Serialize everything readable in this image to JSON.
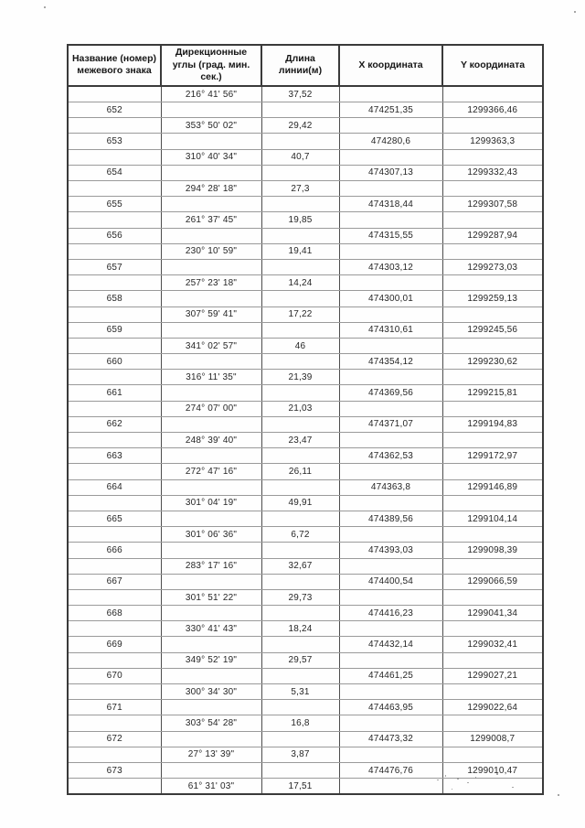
{
  "table": {
    "headers": [
      "Название (номер) межевого знака",
      "Дирекционные углы (град. мин. сек.)",
      "Длина линии(м)",
      "X координата",
      "Y координата"
    ],
    "rows": [
      {
        "point": "",
        "angle": "216° 41' 56\"",
        "length": "37,52",
        "x": "",
        "y": ""
      },
      {
        "point": "652",
        "angle": "",
        "length": "",
        "x": "474251,35",
        "y": "1299366,46"
      },
      {
        "point": "",
        "angle": "353° 50' 02\"",
        "length": "29,42",
        "x": "",
        "y": ""
      },
      {
        "point": "653",
        "angle": "",
        "length": "",
        "x": "474280,6",
        "y": "1299363,3"
      },
      {
        "point": "",
        "angle": "310° 40' 34\"",
        "length": "40,7",
        "x": "",
        "y": ""
      },
      {
        "point": "654",
        "angle": "",
        "length": "",
        "x": "474307,13",
        "y": "1299332,43"
      },
      {
        "point": "",
        "angle": "294° 28' 18\"",
        "length": "27,3",
        "x": "",
        "y": ""
      },
      {
        "point": "655",
        "angle": "",
        "length": "",
        "x": "474318,44",
        "y": "1299307,58"
      },
      {
        "point": "",
        "angle": "261° 37' 45\"",
        "length": "19,85",
        "x": "",
        "y": ""
      },
      {
        "point": "656",
        "angle": "",
        "length": "",
        "x": "474315,55",
        "y": "1299287,94"
      },
      {
        "point": "",
        "angle": "230° 10' 59\"",
        "length": "19,41",
        "x": "",
        "y": ""
      },
      {
        "point": "657",
        "angle": "",
        "length": "",
        "x": "474303,12",
        "y": "1299273,03"
      },
      {
        "point": "",
        "angle": "257° 23' 18\"",
        "length": "14,24",
        "x": "",
        "y": ""
      },
      {
        "point": "658",
        "angle": "",
        "length": "",
        "x": "474300,01",
        "y": "1299259,13"
      },
      {
        "point": "",
        "angle": "307° 59' 41\"",
        "length": "17,22",
        "x": "",
        "y": ""
      },
      {
        "point": "659",
        "angle": "",
        "length": "",
        "x": "474310,61",
        "y": "1299245,56"
      },
      {
        "point": "",
        "angle": "341° 02' 57\"",
        "length": "46",
        "x": "",
        "y": ""
      },
      {
        "point": "660",
        "angle": "",
        "length": "",
        "x": "474354,12",
        "y": "1299230,62"
      },
      {
        "point": "",
        "angle": "316° 11' 35\"",
        "length": "21,39",
        "x": "",
        "y": ""
      },
      {
        "point": "661",
        "angle": "",
        "length": "",
        "x": "474369,56",
        "y": "1299215,81"
      },
      {
        "point": "",
        "angle": "274° 07' 00\"",
        "length": "21,03",
        "x": "",
        "y": ""
      },
      {
        "point": "662",
        "angle": "",
        "length": "",
        "x": "474371,07",
        "y": "1299194,83"
      },
      {
        "point": "",
        "angle": "248° 39' 40\"",
        "length": "23,47",
        "x": "",
        "y": ""
      },
      {
        "point": "663",
        "angle": "",
        "length": "",
        "x": "474362,53",
        "y": "1299172,97"
      },
      {
        "point": "",
        "angle": "272° 47' 16\"",
        "length": "26,11",
        "x": "",
        "y": ""
      },
      {
        "point": "664",
        "angle": "",
        "length": "",
        "x": "474363,8",
        "y": "1299146,89"
      },
      {
        "point": "",
        "angle": "301° 04' 19\"",
        "length": "49,91",
        "x": "",
        "y": ""
      },
      {
        "point": "665",
        "angle": "",
        "length": "",
        "x": "474389,56",
        "y": "1299104,14"
      },
      {
        "point": "",
        "angle": "301° 06' 36\"",
        "length": "6,72",
        "x": "",
        "y": ""
      },
      {
        "point": "666",
        "angle": "",
        "length": "",
        "x": "474393,03",
        "y": "1299098,39"
      },
      {
        "point": "",
        "angle": "283° 17' 16\"",
        "length": "32,67",
        "x": "",
        "y": ""
      },
      {
        "point": "667",
        "angle": "",
        "length": "",
        "x": "474400,54",
        "y": "1299066,59"
      },
      {
        "point": "",
        "angle": "301° 51' 22\"",
        "length": "29,73",
        "x": "",
        "y": ""
      },
      {
        "point": "668",
        "angle": "",
        "length": "",
        "x": "474416,23",
        "y": "1299041,34"
      },
      {
        "point": "",
        "angle": "330° 41' 43\"",
        "length": "18,24",
        "x": "",
        "y": ""
      },
      {
        "point": "669",
        "angle": "",
        "length": "",
        "x": "474432,14",
        "y": "1299032,41"
      },
      {
        "point": "",
        "angle": "349° 52' 19\"",
        "length": "29,57",
        "x": "",
        "y": ""
      },
      {
        "point": "670",
        "angle": "",
        "length": "",
        "x": "474461,25",
        "y": "1299027,21"
      },
      {
        "point": "",
        "angle": "300° 34' 30\"",
        "length": "5,31",
        "x": "",
        "y": ""
      },
      {
        "point": "671",
        "angle": "",
        "length": "",
        "x": "474463,95",
        "y": "1299022,64"
      },
      {
        "point": "",
        "angle": "303° 54' 28\"",
        "length": "16,8",
        "x": "",
        "y": ""
      },
      {
        "point": "672",
        "angle": "",
        "length": "",
        "x": "474473,32",
        "y": "1299008,7"
      },
      {
        "point": "",
        "angle": "27° 13' 39\"",
        "length": "3,87",
        "x": "",
        "y": ""
      },
      {
        "point": "673",
        "angle": "",
        "length": "",
        "x": "474476,76",
        "y": "1299010,47"
      },
      {
        "point": "",
        "angle": "61° 31' 03\"",
        "length": "17,51",
        "x": "",
        "y": ""
      }
    ]
  }
}
